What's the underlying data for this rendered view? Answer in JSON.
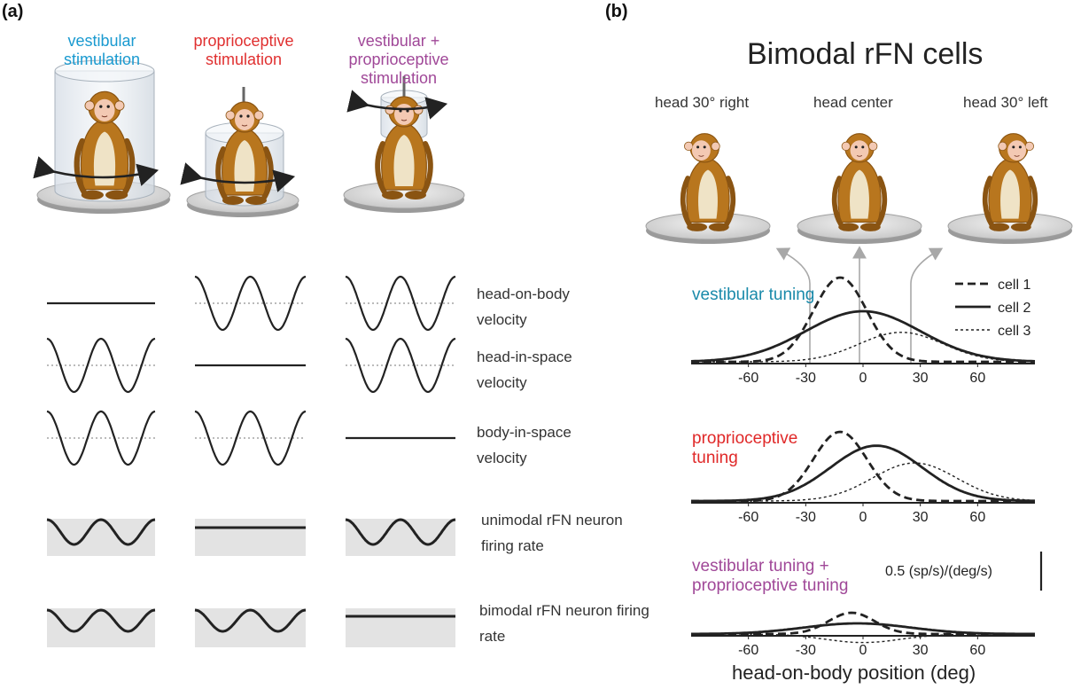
{
  "panel_a": {
    "letter": "(a)",
    "conditions": [
      {
        "label": "vestibular stimulation",
        "color": "#1a9ad0"
      },
      {
        "label": "proprioceptive stimulation",
        "color": "#e03030"
      },
      {
        "label": "vestibular + proprioceptive stimulation",
        "color": "#a04898"
      }
    ],
    "rows": [
      {
        "label": "head-on-body velocity",
        "traces": [
          "flat",
          "sine",
          "sine-inverted"
        ]
      },
      {
        "label": "head-in-space velocity",
        "traces": [
          "sine-inverted",
          "flat",
          "sine-inverted"
        ]
      },
      {
        "label": "body-in-space velocity",
        "traces": [
          "sine-inverted",
          "sine-inverted",
          "flat"
        ]
      },
      {
        "label": "unimodal rFN neuron firing rate",
        "traces": [
          "modulated",
          "flat",
          "modulated"
        ]
      },
      {
        "label": "bimodal rFN neuron firing rate",
        "traces": [
          "modulated",
          "modulated",
          "flat"
        ]
      }
    ],
    "icons": [
      "monkey-icon",
      "turntable-icon",
      "cylinder-icon",
      "rotation-arrow-icon"
    ]
  },
  "panel_b": {
    "letter": "(b)",
    "title": "Bimodal rFN cells",
    "positions": [
      "head 30° right",
      "head center",
      "head 30° left"
    ],
    "x_ticks": [
      -60,
      -30,
      0,
      30,
      60
    ],
    "xlabel": "head-on-body position (deg)",
    "scale_bar": "0.5 (sp/s)/(deg/s)",
    "legend": [
      "cell 1",
      "cell 2",
      "cell 3"
    ],
    "tunings": [
      {
        "label": "vestibular tuning",
        "color": "#1a8aaa"
      },
      {
        "label": "proprioceptive tuning",
        "color": "#e02828"
      },
      {
        "label": "vestibular tuning + proprioceptive tuning",
        "color": "#a04898"
      }
    ]
  },
  "chart_data": {
    "type": "line",
    "x_range": [
      -90,
      90
    ],
    "x_ticks": [
      -60,
      -30,
      0,
      30,
      60
    ],
    "xlabel": "head-on-body position (deg)",
    "subplots": [
      {
        "name": "vestibular tuning",
        "series": [
          {
            "name": "cell 1",
            "peak_x": -12,
            "amplitude": 1.0,
            "width": 14
          },
          {
            "name": "cell 2",
            "peak_x": 0,
            "amplitude": 0.6,
            "width": 30
          },
          {
            "name": "cell 3",
            "peak_x": 20,
            "amplitude": 0.35,
            "width": 22
          }
        ]
      },
      {
        "name": "proprioceptive tuning",
        "series": [
          {
            "name": "cell 1",
            "peak_x": -12,
            "amplitude": 1.0,
            "width": 14
          },
          {
            "name": "cell 2",
            "peak_x": 7,
            "amplitude": 0.8,
            "width": 24
          },
          {
            "name": "cell 3",
            "peak_x": 27,
            "amplitude": 0.55,
            "width": 22
          }
        ]
      },
      {
        "name": "vestibular tuning + proprioceptive tuning",
        "series": [
          {
            "name": "cell 1",
            "peak_x": -6,
            "amplitude": 0.3,
            "width": 12
          },
          {
            "name": "cell 2",
            "peak_x": -3,
            "amplitude": 0.15,
            "width": 28
          },
          {
            "name": "cell 3",
            "peak_x": 0,
            "amplitude": -0.12,
            "width": 20
          }
        ]
      }
    ]
  }
}
